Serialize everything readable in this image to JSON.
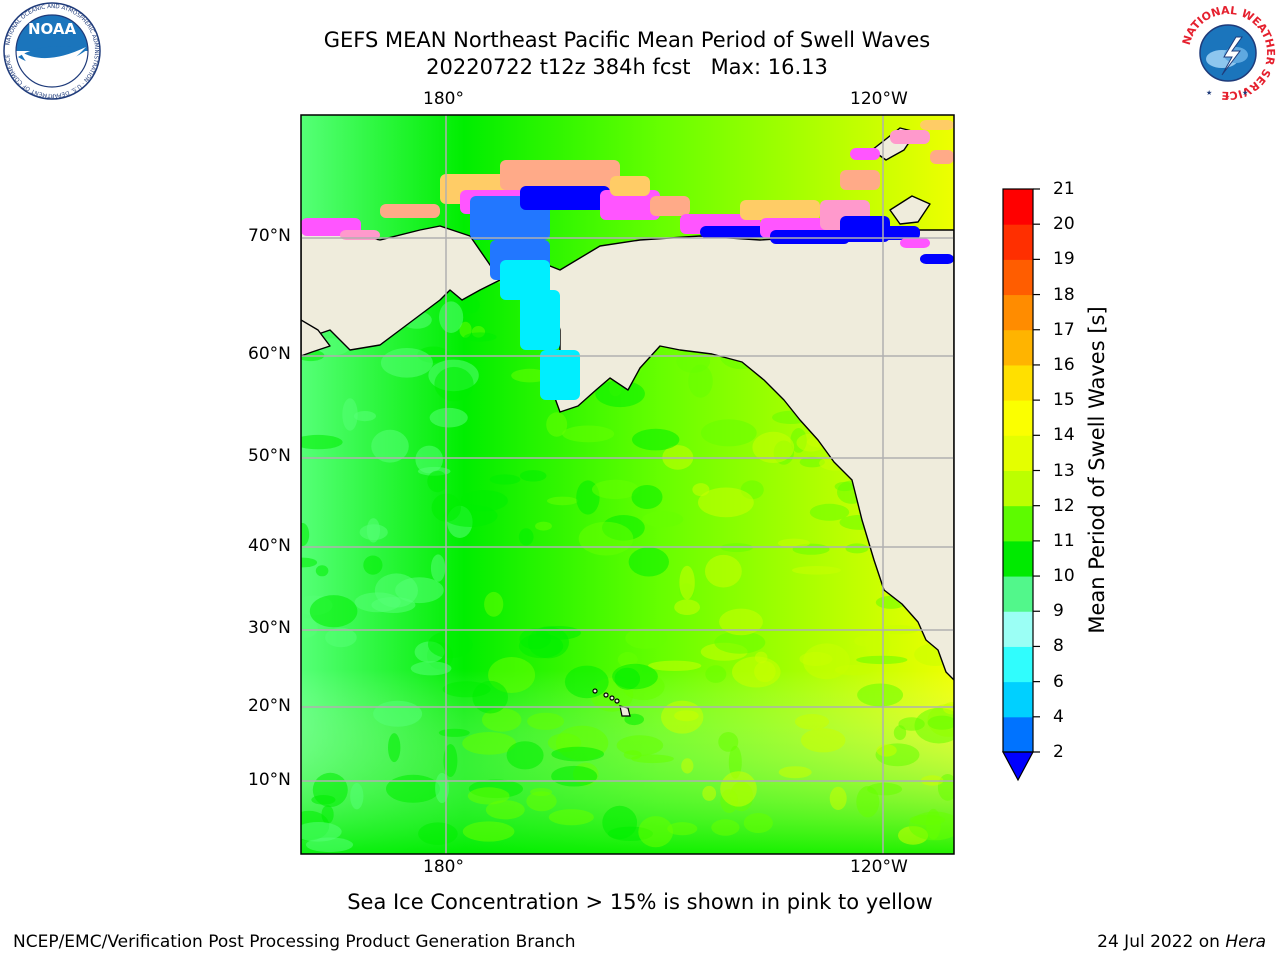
{
  "header": {
    "title_line1": "GEFS MEAN Northeast Pacific Mean Period of Swell Waves",
    "title_line2": "20220722 t12z 384h fcst   Max: 16.13"
  },
  "map": {
    "lon_labels": [
      "180°",
      "120°W"
    ],
    "lat_labels": [
      "70°N",
      "60°N",
      "50°N",
      "40°N",
      "30°N",
      "20°N",
      "10°N"
    ],
    "gridlines": true,
    "ocean_colors": [
      "#00ee00",
      "#55ff77",
      "#66ff00",
      "#c8ff00",
      "#eeff00"
    ],
    "land_color": "#efecdc",
    "ice_colors": [
      "#ff55ff",
      "#ff99cc",
      "#ffaa88",
      "#ffcc66",
      "#0000ff",
      "#2277ff",
      "#00eeff"
    ],
    "hawaii": true
  },
  "colorbar": {
    "label": "Mean Period of Swell Waves [s]",
    "ticks": [
      "2",
      "4",
      "6",
      "8",
      "9",
      "10",
      "11",
      "12",
      "13",
      "14",
      "15",
      "16",
      "17",
      "18",
      "19",
      "20",
      "21"
    ],
    "colors": [
      "#0000ff",
      "#0073ff",
      "#00d0ff",
      "#30fdfd",
      "#9bfff5",
      "#52f78b",
      "#00ea00",
      "#5dfb00",
      "#bcff00",
      "#e4ff00",
      "#fbff00",
      "#ffe000",
      "#ffb400",
      "#ff8c00",
      "#ff5d00",
      "#ff2f00",
      "#ff0000"
    ],
    "extend": "min"
  },
  "note": "Sea Ice Concentration > 15% is shown in pink to yellow",
  "footer": {
    "left": "NCEP/EMC/Verification Post Processing Product Generation Branch",
    "date": "24 Jul 2022 on ",
    "host": "Hera"
  },
  "logos": {
    "noaa": "NOAA",
    "noaa_ring": "NATIONAL OCEANIC AND ATMOSPHERIC ADMINISTRATION · U.S. DEPARTMENT OF COMMERCE",
    "nws_ring": "NATIONAL WEATHER SERVICE"
  }
}
